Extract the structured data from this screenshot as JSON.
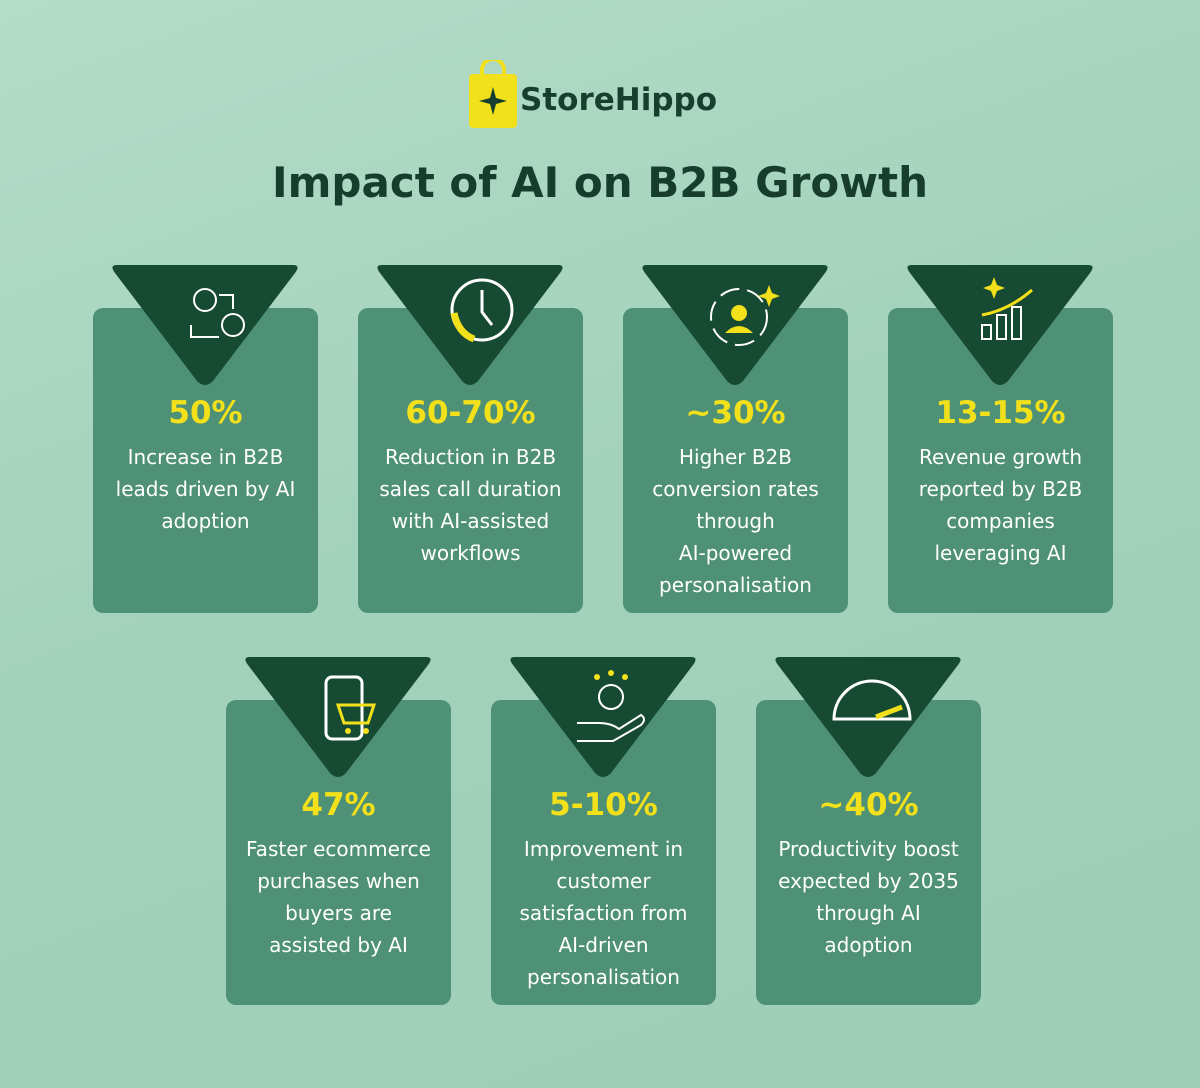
{
  "brand": "StoreHippo",
  "title": "Impact of AI on B2B Growth",
  "cards": [
    {
      "stat": "50%",
      "description": [
        "Increase in B2B",
        "leads driven by AI",
        "adoption"
      ]
    },
    {
      "stat": "60-70%",
      "description": [
        "Reduction in B2B",
        "sales call duration",
        "with AI-assisted",
        "workflows"
      ]
    },
    {
      "stat": "~30%",
      "description": [
        "Higher B2B",
        "conversion rates",
        "through",
        "AI-powered",
        "personalisation"
      ]
    },
    {
      "stat": "13-15%",
      "description": [
        "Revenue growth",
        "reported by B2B",
        "companies",
        "leveraging AI"
      ]
    },
    {
      "stat": "47%",
      "description": [
        "Faster ecommerce",
        "purchases when",
        "buyers are",
        "assisted by AI"
      ]
    },
    {
      "stat": "5-10%",
      "description": [
        "Improvement in",
        "customer",
        "satisfaction from",
        "AI-driven",
        "personalisation"
      ]
    },
    {
      "stat": "~40%",
      "description": [
        "Productivity boost",
        "expected by 2035",
        "through AI",
        "adoption"
      ]
    }
  ]
}
